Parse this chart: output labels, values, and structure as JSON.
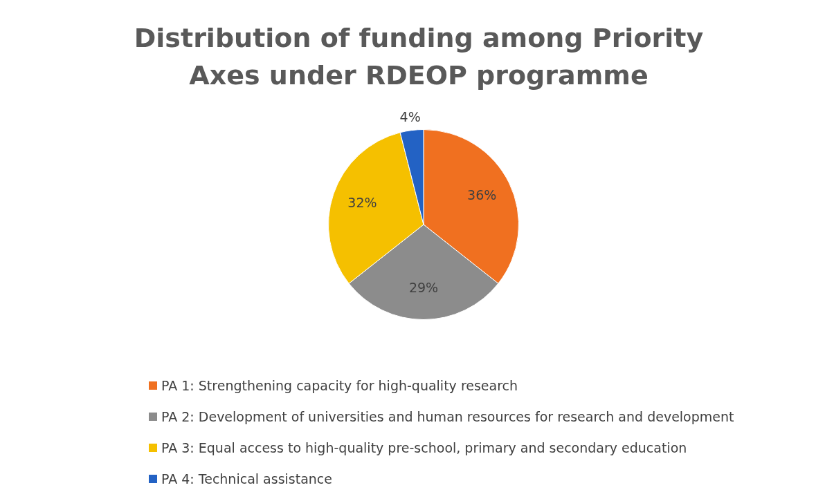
{
  "chart_data": {
    "type": "pie",
    "title": "Distribution of funding among Priority Axes under RDEOP programme",
    "categories": [
      "PA 1: Strengthening capacity for high-quality research",
      "PA 2: Development of universities and human resources for research and development",
      "PA 3: Equal access to high-quality pre-school, primary and secondary education",
      "PA 4: Technical assistance"
    ],
    "values": [
      36,
      29,
      32,
      4
    ],
    "value_labels": [
      "36%",
      "29%",
      "32%",
      "4%"
    ],
    "colors": [
      "#f07020",
      "#8c8c8c",
      "#f5c000",
      "#2362c4"
    ],
    "legend": "bottom"
  }
}
